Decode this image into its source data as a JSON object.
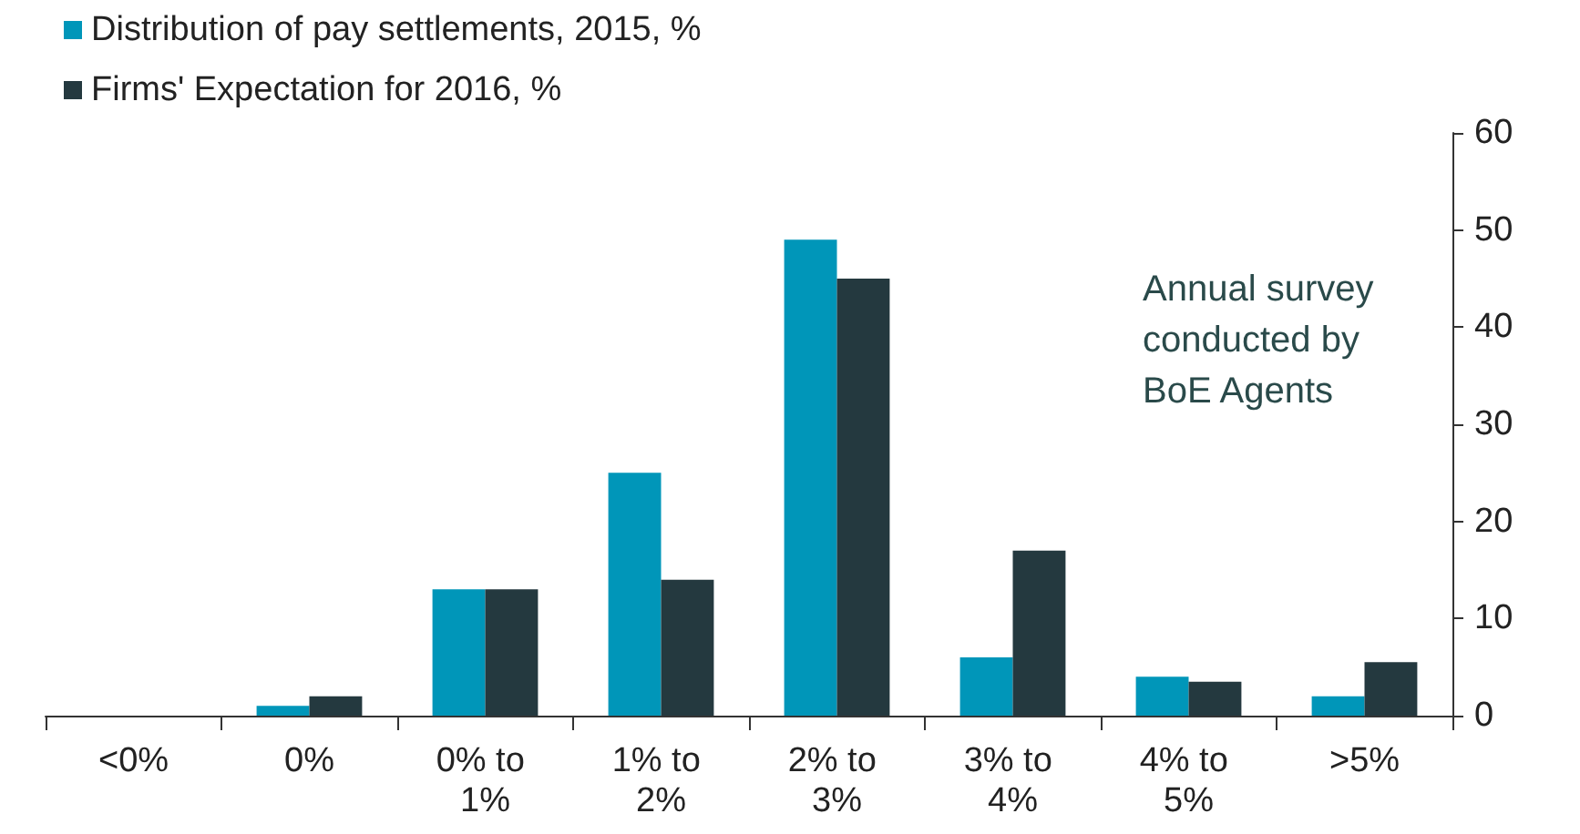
{
  "chart_data": {
    "type": "bar",
    "categories": [
      "<0%",
      "0%",
      "0% to 1%",
      "1% to 2%",
      "2% to 3%",
      "3% to 4%",
      "4% to 5%",
      ">5%"
    ],
    "series": [
      {
        "name": "Distribution of pay settlements, 2015, %",
        "color": "#0096b9",
        "values": [
          0,
          1,
          13,
          25,
          49,
          6,
          4,
          2
        ]
      },
      {
        "name": "Firms' Expectation for 2016, %",
        "color": "#24393f",
        "values": [
          0,
          2,
          13,
          14,
          45,
          17,
          3.5,
          5.5
        ]
      }
    ],
    "ylim": [
      0,
      60
    ],
    "yticks": [
      0,
      10,
      20,
      30,
      40,
      50,
      60
    ],
    "grid": false,
    "legend": "top left",
    "annotations": [
      "Annual survey conducted by BoE Agents"
    ]
  }
}
